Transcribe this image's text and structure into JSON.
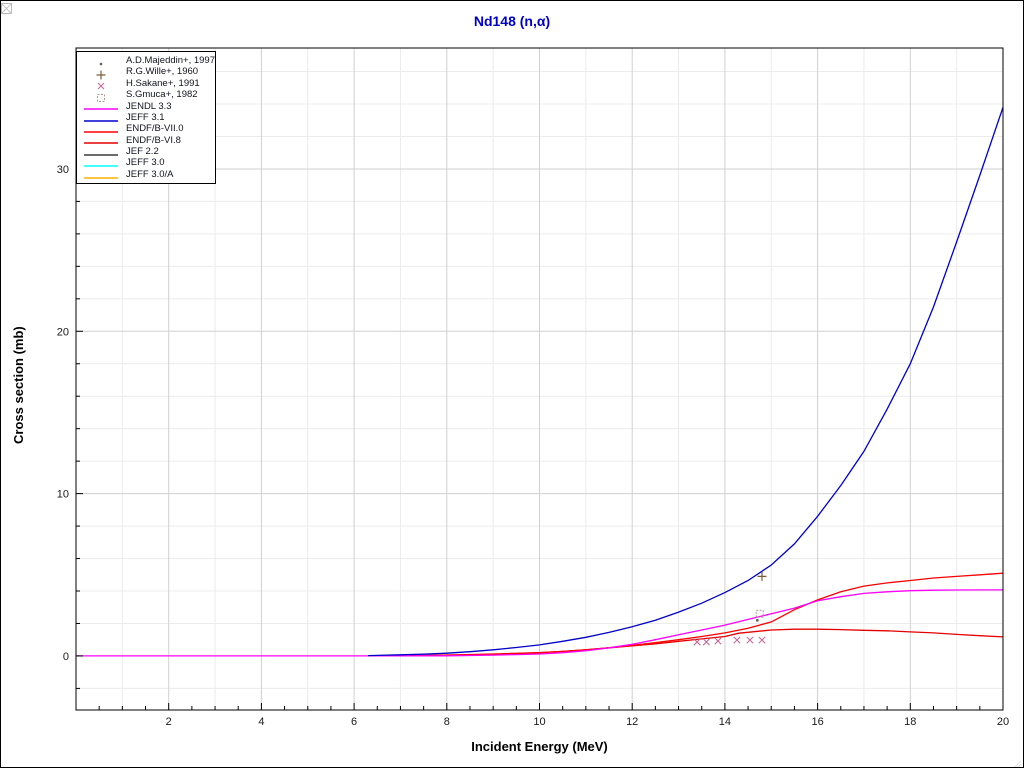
{
  "chart_data": {
    "type": "line",
    "title": "Nd148 (n,α)",
    "xlabel": "Incident Energy (MeV)",
    "ylabel": "Cross section (mb)",
    "xlim": [
      0,
      20
    ],
    "ylim": [
      -3.33,
      37.45
    ],
    "grid": {
      "x_major_step": 2,
      "x_minor_step": 1,
      "y_major_step": 10,
      "y_minor_step": 2,
      "shown": true
    },
    "ticks": {
      "x_major_step": 2,
      "x_minor_step": 0.5,
      "y_major_step": 10,
      "y_minor_step": 2
    },
    "x_tick_labels": [
      2,
      4,
      6,
      8,
      10,
      12,
      14,
      16,
      18,
      20
    ],
    "y_tick_labels": [
      0,
      10,
      20,
      30
    ],
    "legend_position": "top-left",
    "series": [
      {
        "name": "ENDF/B-VI.8",
        "color": "#e60000",
        "points": [
          [
            7.2,
            0.02
          ],
          [
            8,
            0.06
          ],
          [
            9,
            0.12
          ],
          [
            10,
            0.2
          ],
          [
            10.5,
            0.28
          ],
          [
            11,
            0.38
          ],
          [
            11.5,
            0.5
          ],
          [
            12,
            0.62
          ],
          [
            12.5,
            0.75
          ],
          [
            13,
            0.9
          ],
          [
            13.5,
            1.05
          ],
          [
            14,
            1.2
          ],
          [
            14.3,
            1.4
          ],
          [
            15,
            1.6
          ],
          [
            15.5,
            1.65
          ],
          [
            16,
            1.65
          ],
          [
            16.5,
            1.62
          ],
          [
            17,
            1.58
          ],
          [
            17.5,
            1.55
          ],
          [
            18,
            1.48
          ],
          [
            18.5,
            1.42
          ],
          [
            19,
            1.33
          ],
          [
            19.5,
            1.25
          ],
          [
            20,
            1.17
          ]
        ]
      },
      {
        "name": "ENDF/B-VII.0",
        "color": "#ff0000",
        "points": [
          [
            7.8,
            0.02
          ],
          [
            8.5,
            0.06
          ],
          [
            9,
            0.1
          ],
          [
            9.5,
            0.14
          ],
          [
            10,
            0.2
          ],
          [
            10.5,
            0.28
          ],
          [
            11,
            0.38
          ],
          [
            11.5,
            0.5
          ],
          [
            12,
            0.65
          ],
          [
            12.5,
            0.82
          ],
          [
            13,
            1.0
          ],
          [
            13.5,
            1.2
          ],
          [
            14,
            1.42
          ],
          [
            14.5,
            1.7
          ],
          [
            15,
            2.1
          ],
          [
            15.5,
            2.85
          ],
          [
            16,
            3.45
          ],
          [
            16.5,
            3.95
          ],
          [
            17,
            4.3
          ],
          [
            17.5,
            4.5
          ],
          [
            18,
            4.65
          ],
          [
            18.5,
            4.8
          ],
          [
            19,
            4.9
          ],
          [
            19.5,
            5.0
          ],
          [
            20,
            5.1
          ]
        ]
      },
      {
        "name": "JENDL 3.3",
        "color": "#ff00ff",
        "points": [
          [
            0,
            0
          ],
          [
            6,
            0
          ],
          [
            8,
            0.01
          ],
          [
            9,
            0.05
          ],
          [
            9.5,
            0.08
          ],
          [
            10,
            0.12
          ],
          [
            10.5,
            0.2
          ],
          [
            11,
            0.32
          ],
          [
            11.5,
            0.5
          ],
          [
            12,
            0.72
          ],
          [
            12.5,
            1.0
          ],
          [
            13,
            1.3
          ],
          [
            13.5,
            1.6
          ],
          [
            14,
            1.9
          ],
          [
            14.5,
            2.25
          ],
          [
            15,
            2.6
          ],
          [
            15.5,
            2.95
          ],
          [
            16,
            3.4
          ],
          [
            16.5,
            3.65
          ],
          [
            17,
            3.85
          ],
          [
            17.5,
            3.95
          ],
          [
            18,
            4.02
          ],
          [
            18.5,
            4.05
          ],
          [
            19,
            4.06
          ],
          [
            19.5,
            4.07
          ],
          [
            20,
            4.07
          ]
        ]
      },
      {
        "name": "JEFF 3.1",
        "color": "#0000cd",
        "points": [
          [
            6.3,
            0.02
          ],
          [
            7,
            0.07
          ],
          [
            7.5,
            0.11
          ],
          [
            8,
            0.17
          ],
          [
            8.5,
            0.26
          ],
          [
            9,
            0.38
          ],
          [
            9.5,
            0.52
          ],
          [
            10,
            0.68
          ],
          [
            10.5,
            0.9
          ],
          [
            11,
            1.15
          ],
          [
            11.5,
            1.45
          ],
          [
            12,
            1.8
          ],
          [
            12.5,
            2.2
          ],
          [
            13,
            2.7
          ],
          [
            13.5,
            3.25
          ],
          [
            14,
            3.9
          ],
          [
            14.5,
            4.65
          ],
          [
            15,
            5.6
          ],
          [
            15.5,
            6.9
          ],
          [
            16,
            8.6
          ],
          [
            16.5,
            10.5
          ],
          [
            17,
            12.6
          ],
          [
            17.5,
            15.2
          ],
          [
            18,
            18.0
          ],
          [
            18.5,
            21.5
          ],
          [
            19,
            25.5
          ],
          [
            19.5,
            29.6
          ],
          [
            20,
            33.8
          ]
        ]
      },
      {
        "name": "JEF 2.2",
        "color": "#3c3c3c",
        "points": [],
        "note": "curve coincides with other evaluations; not separately visible"
      },
      {
        "name": "JEFF 3.0",
        "color": "#00ffff",
        "points": [],
        "note": "curve coincides with other evaluations; not separately visible"
      },
      {
        "name": "JEFF 3.0/A",
        "color": "#ffb000",
        "points": [],
        "note": "curve coincides with other evaluations; not separately visible"
      }
    ],
    "scatter": [
      {
        "name": "A.D.Majeddin+, 1997",
        "marker": "dot",
        "color": "#606060",
        "points": [
          [
            14.7,
            2.2
          ]
        ]
      },
      {
        "name": "R.G.Wille+, 1960",
        "marker": "plus",
        "color": "#7d5c3c",
        "points": [
          [
            14.8,
            4.9
          ]
        ]
      },
      {
        "name": "H.Sakane+, 1991",
        "marker": "x",
        "color": "#c66a9a",
        "points": [
          [
            13.4,
            0.86
          ],
          [
            13.6,
            0.86
          ],
          [
            13.85,
            0.92
          ],
          [
            14.26,
            0.98
          ],
          [
            14.54,
            0.98
          ],
          [
            14.8,
            0.98
          ]
        ]
      },
      {
        "name": "S.Gmuca+, 1982",
        "marker": "square",
        "color": "#b09494",
        "points": [
          [
            14.75,
            2.6
          ]
        ]
      }
    ]
  },
  "legend": {
    "entries": [
      {
        "label": "A.D.Majeddin+, 1997",
        "type": "marker",
        "marker": "dot",
        "color": "#606060"
      },
      {
        "label": "R.G.Wille+, 1960",
        "type": "marker",
        "marker": "plus",
        "color": "#7d5c3c"
      },
      {
        "label": "H.Sakane+, 1991",
        "type": "marker",
        "marker": "x",
        "color": "#c66a9a"
      },
      {
        "label": "S.Gmuca+, 1982",
        "type": "marker",
        "marker": "square",
        "color": "#b09494"
      },
      {
        "label": "JENDL 3.3",
        "type": "line",
        "color": "#ff00ff"
      },
      {
        "label": "JEFF 3.1",
        "type": "line",
        "color": "#0000cd"
      },
      {
        "label": "ENDF/B-VII.0",
        "type": "line",
        "color": "#ff0000"
      },
      {
        "label": "ENDF/B-VI.8",
        "type": "line",
        "color": "#e60000"
      },
      {
        "label": "JEF 2.2",
        "type": "line",
        "color": "#3c3c3c"
      },
      {
        "label": "JEFF 3.0",
        "type": "line",
        "color": "#00ffff"
      },
      {
        "label": "JEFF 3.0/A",
        "type": "line",
        "color": "#ffb000"
      }
    ]
  },
  "colors": {
    "title": "#0000c8",
    "frame": "#000000",
    "grid_major": "#d0d0d0",
    "grid_minor": "#ececec",
    "tick_label": "#1a1a1a"
  }
}
